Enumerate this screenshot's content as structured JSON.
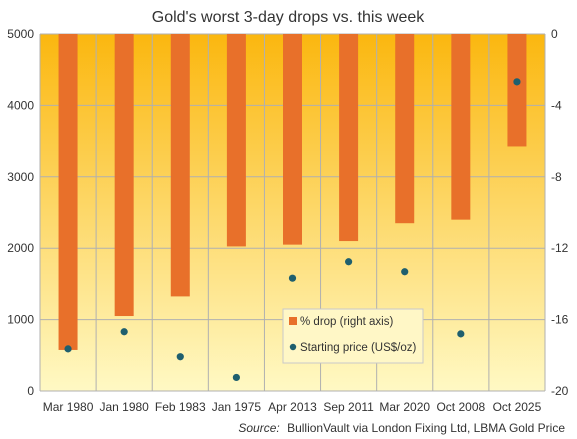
{
  "chart_data": {
    "type": "bar",
    "title": "Gold's worst 3-day drops vs. this week",
    "categories": [
      "Mar 1980",
      "Jan 1980",
      "Feb 1983",
      "Jan 1975",
      "Apr 2013",
      "Sep 2011",
      "Mar 2020",
      "Oct 2008",
      "Oct 2025"
    ],
    "series": [
      {
        "name": "% drop (right axis)",
        "type": "bar",
        "axis": "right",
        "color": "#e8702a",
        "values": [
          -17.7,
          -15.8,
          -14.7,
          -11.9,
          -11.8,
          -11.6,
          -10.6,
          -10.4,
          -6.3
        ]
      },
      {
        "name": "Starting price (US$/oz)",
        "type": "scatter",
        "axis": "left",
        "color": "#1f5f6e",
        "values": [
          590,
          830,
          480,
          190,
          1580,
          1810,
          1670,
          800,
          4330
        ]
      }
    ],
    "y_left": {
      "lim": [
        0,
        5000
      ],
      "ticks": [
        "0",
        "1000",
        "2000",
        "3000",
        "4000",
        "5000"
      ]
    },
    "y_right": {
      "lim": [
        -20,
        0
      ],
      "ticks": [
        "0",
        "-4",
        "-8",
        "-12",
        "-16",
        "-20"
      ]
    },
    "grid": true,
    "legend": "bottom-center",
    "background_gradient": [
      "#fbb70f",
      "#fff9c4"
    ],
    "source_label": "Source:",
    "source_text": "BullionVault via London Fixing Ltd, LBMA Gold Price"
  }
}
